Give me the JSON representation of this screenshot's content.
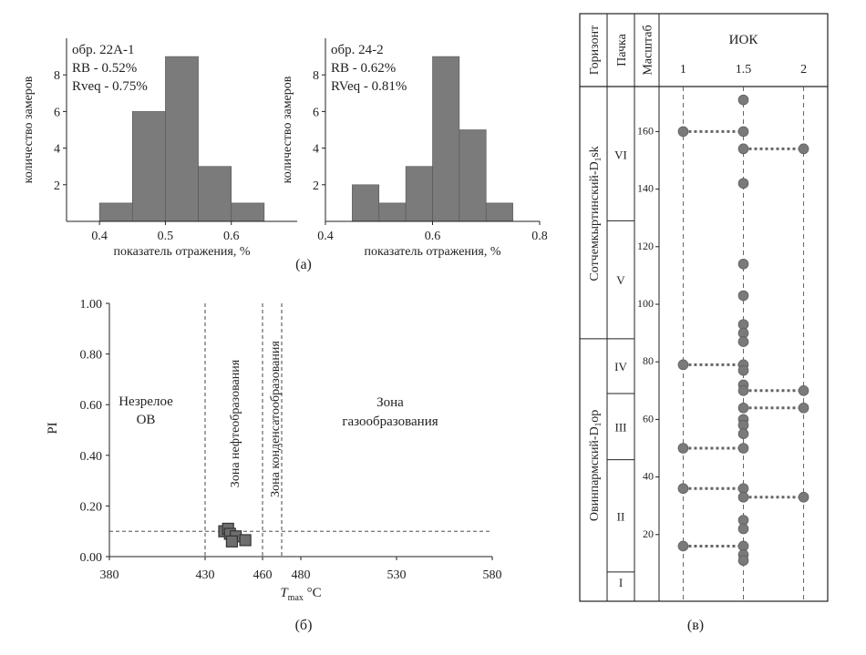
{
  "chart_data": [
    {
      "type": "bar",
      "panel": "hist-22A-1",
      "annotation": [
        "обр. 22А-1",
        "RB - 0.52%",
        "Rveq - 0.75%"
      ],
      "xlabel": "показатель отражения, %",
      "ylabel": "количество замеров",
      "bins": [
        [
          0.4,
          0.45
        ],
        [
          0.45,
          0.5
        ],
        [
          0.5,
          0.55
        ],
        [
          0.55,
          0.6
        ],
        [
          0.6,
          0.65
        ]
      ],
      "values": [
        1,
        6,
        9,
        3,
        1
      ],
      "xlim": [
        0.35,
        0.7
      ],
      "ylim": [
        0,
        10
      ],
      "xticks": [
        "0.4",
        "0.5",
        "0.6"
      ],
      "yticks": [
        "2",
        "4",
        "6",
        "8"
      ],
      "color": "#7b7b7b"
    },
    {
      "type": "bar",
      "panel": "hist-24-2",
      "annotation": [
        "обр. 24-2",
        "RB - 0.62%",
        "RVeq - 0.81%"
      ],
      "xlabel": "показатель отражения, %",
      "ylabel": "количество замеров",
      "bins": [
        [
          0.45,
          0.5
        ],
        [
          0.5,
          0.55
        ],
        [
          0.55,
          0.6
        ],
        [
          0.6,
          0.65
        ],
        [
          0.65,
          0.7
        ],
        [
          0.7,
          0.75
        ]
      ],
      "values": [
        2,
        1,
        3,
        9,
        5,
        1
      ],
      "xlim": [
        0.4,
        0.8
      ],
      "ylim": [
        0,
        10
      ],
      "xticks": [
        "0.4",
        "0.6",
        "0.8"
      ],
      "yticks": [
        "2",
        "4",
        "6",
        "8"
      ],
      "color": "#7b7b7b"
    },
    {
      "type": "scatter",
      "panel": "pi-tmax",
      "xlabel_main": "T",
      "xlabel_sub": "max",
      "xlabel_unit": " °C",
      "ylabel": "PI",
      "xlim": [
        380,
        580
      ],
      "ylim": [
        0,
        1
      ],
      "xticks": [
        "380",
        "430",
        "460",
        "480",
        "530",
        "580"
      ],
      "yticks": [
        "0.00",
        "0.20",
        "0.40",
        "0.60",
        "0.80",
        "1.00"
      ],
      "zone_bounds": [
        430,
        460,
        470
      ],
      "threshold_pi": 0.1,
      "zones": {
        "immature": [
          "Незрелое",
          "ОВ"
        ],
        "oil": "Зона нефтеобразования",
        "condensate": "Зона конденсатообразования",
        "gas": [
          "Зона",
          "газообразования"
        ]
      },
      "points": [
        [
          440,
          0.1
        ],
        [
          442,
          0.11
        ],
        [
          443,
          0.09
        ],
        [
          446,
          0.08
        ],
        [
          444,
          0.06
        ],
        [
          451,
          0.065
        ]
      ],
      "marker_color": "#6e6e6e"
    },
    {
      "type": "scatter",
      "panel": "iok-column",
      "headers": {
        "horizon": "Горизонт",
        "member": "Пачка",
        "scale": "Масштаб",
        "iok": "ИОК"
      },
      "horizons": [
        {
          "label": "Сотчемкыртинский-D",
          "sub": "1",
          "suffix": "sk",
          "top": 175,
          "bottom": 88
        },
        {
          "label": "Овинпармский-D",
          "sub": "1",
          "suffix": "op",
          "top": 88,
          "bottom": 0
        }
      ],
      "members": [
        {
          "label": "VI",
          "top": 175,
          "bottom": 129
        },
        {
          "label": "V",
          "top": 129,
          "bottom": 88
        },
        {
          "label": "IV",
          "top": 88,
          "bottom": 69
        },
        {
          "label": "III",
          "top": 69,
          "bottom": 46
        },
        {
          "label": "II",
          "top": 46,
          "bottom": 7
        },
        {
          "label": "I",
          "top": 7,
          "bottom": 0
        }
      ],
      "scale_ticks": [
        "20",
        "40",
        "60",
        "80",
        "100",
        "120",
        "140",
        "160"
      ],
      "iok_ticks": [
        "1",
        "1.5",
        "2"
      ],
      "xlim": [
        0.8,
        2.2
      ],
      "depth_range": [
        0,
        175
      ],
      "points": [
        {
          "depth": 171,
          "iok": 1.5
        },
        {
          "depth": 160,
          "iok": 1.0
        },
        {
          "depth": 160,
          "iok": 1.5
        },
        {
          "depth": 154,
          "iok": 1.5
        },
        {
          "depth": 154,
          "iok": 2.0
        },
        {
          "depth": 142,
          "iok": 1.5
        },
        {
          "depth": 114,
          "iok": 1.5
        },
        {
          "depth": 103,
          "iok": 1.5
        },
        {
          "depth": 93,
          "iok": 1.5
        },
        {
          "depth": 90,
          "iok": 1.5
        },
        {
          "depth": 87,
          "iok": 1.5
        },
        {
          "depth": 79,
          "iok": 1.0
        },
        {
          "depth": 79,
          "iok": 1.5
        },
        {
          "depth": 77,
          "iok": 1.5
        },
        {
          "depth": 72,
          "iok": 1.5
        },
        {
          "depth": 70,
          "iok": 1.5
        },
        {
          "depth": 70,
          "iok": 2.0
        },
        {
          "depth": 64,
          "iok": 1.5
        },
        {
          "depth": 64,
          "iok": 2.0
        },
        {
          "depth": 60,
          "iok": 1.5
        },
        {
          "depth": 58,
          "iok": 1.5
        },
        {
          "depth": 55,
          "iok": 1.5
        },
        {
          "depth": 50,
          "iok": 1.0
        },
        {
          "depth": 50,
          "iok": 1.5
        },
        {
          "depth": 36,
          "iok": 1.0
        },
        {
          "depth": 36,
          "iok": 1.5
        },
        {
          "depth": 33,
          "iok": 1.5
        },
        {
          "depth": 33,
          "iok": 2.0
        },
        {
          "depth": 25,
          "iok": 1.5
        },
        {
          "depth": 22,
          "iok": 1.5
        },
        {
          "depth": 16,
          "iok": 1.0
        },
        {
          "depth": 16,
          "iok": 1.5
        },
        {
          "depth": 13,
          "iok": 1.5
        },
        {
          "depth": 11,
          "iok": 1.5
        }
      ],
      "links": [
        [
          160,
          1.0,
          1.5
        ],
        [
          154,
          1.5,
          2.0
        ],
        [
          79,
          1.0,
          1.5
        ],
        [
          70,
          1.5,
          2.0
        ],
        [
          64,
          1.5,
          2.0
        ],
        [
          50,
          1.0,
          1.5
        ],
        [
          36,
          1.0,
          1.5
        ],
        [
          33,
          1.5,
          2.0
        ],
        [
          16,
          1.0,
          1.5
        ]
      ],
      "marker_color": "#7a7a7a"
    }
  ],
  "captions": {
    "a": "(а)",
    "b": "(б)",
    "c": "(в)"
  }
}
